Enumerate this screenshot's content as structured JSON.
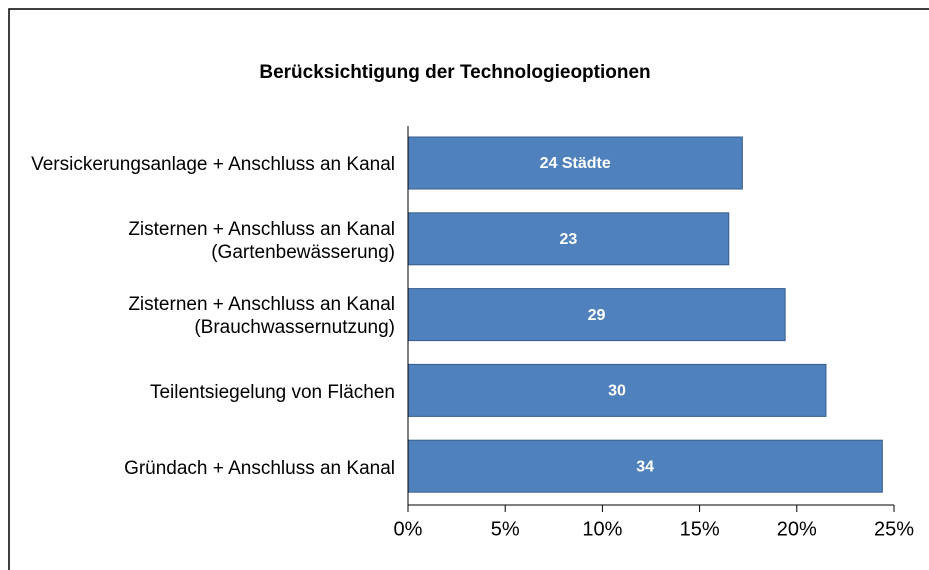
{
  "chart_data": {
    "type": "hbar",
    "title": "Berücksichtigung der Technologieoptionen",
    "categories": [
      "Versickerungsanlage + Anschluss an Kanal",
      "Zisternen + Anschluss an Kanal (Gartenbewässerung)",
      "Zisternen + Anschluss an Kanal (Brauchwassernutzung)",
      "Teilentsiegelung von Flächen",
      "Gründach + Anschluss an Kanal"
    ],
    "values": [
      17.2,
      16.5,
      19.4,
      21.5,
      24.4
    ],
    "annotations": [
      "24 Städte",
      "23",
      "29",
      "30",
      "34"
    ],
    "color": "#4f81bd",
    "xlim": [
      0,
      25
    ],
    "xticks": [
      {
        "value": 0,
        "label": "0%"
      },
      {
        "value": 5,
        "label": "5%"
      },
      {
        "value": 10,
        "label": "10%"
      },
      {
        "value": 15,
        "label": "15%"
      },
      {
        "value": 20,
        "label": "20%"
      },
      {
        "value": 25,
        "label": "25%"
      }
    ],
    "grid": false
  }
}
